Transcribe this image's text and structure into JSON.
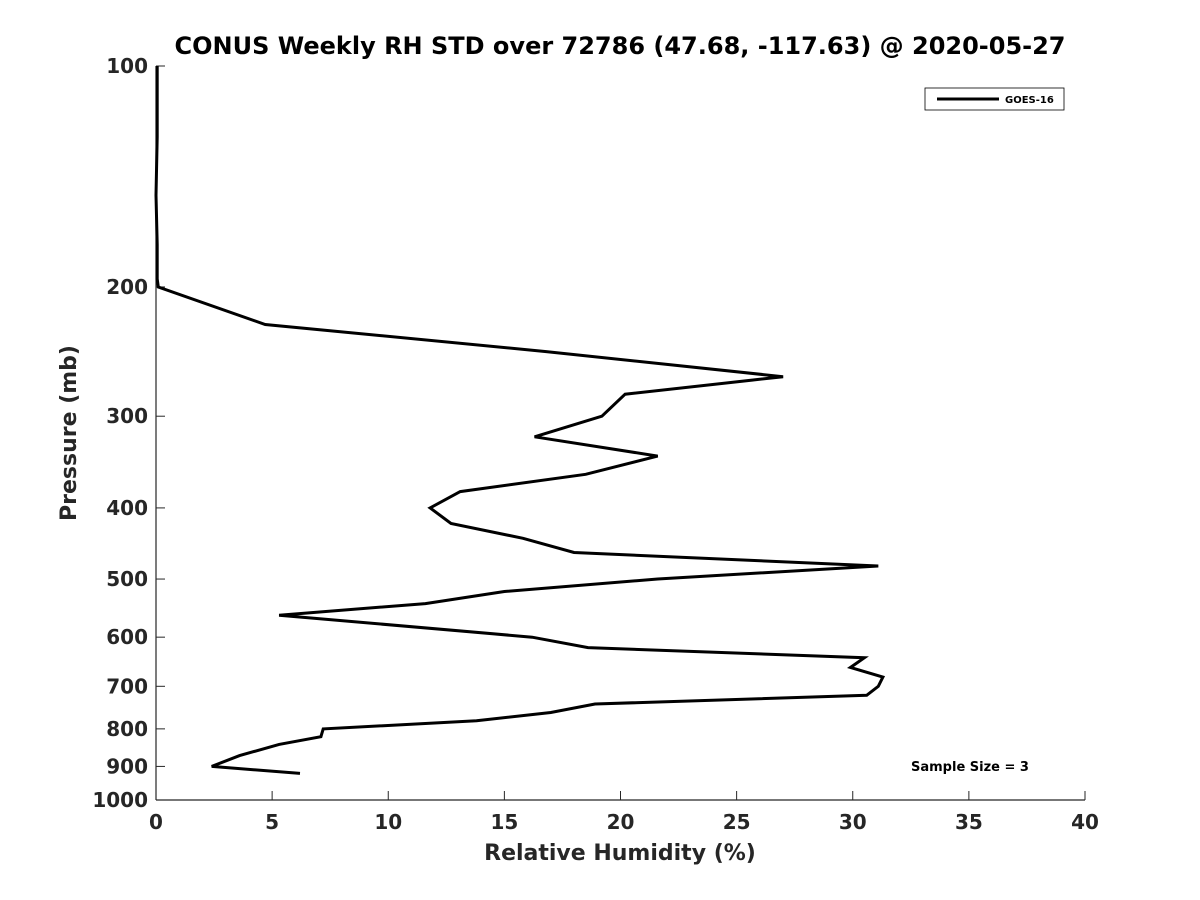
{
  "chart_data": {
    "type": "line",
    "title": "CONUS Weekly RH STD over 72786 (47.68, -117.63) @ 2020-05-27",
    "xlabel": "Relative Humidity (%)",
    "ylabel": "Pressure (mb)",
    "xlim": [
      0,
      40
    ],
    "ylim": [
      100,
      1000
    ],
    "yscale": "log",
    "y_reversed": true,
    "xticks": [
      0,
      5,
      10,
      15,
      20,
      25,
      30,
      35,
      40
    ],
    "yticks": [
      100,
      200,
      300,
      400,
      500,
      600,
      700,
      800,
      900,
      1000
    ],
    "legend_position": "top-right",
    "series": [
      {
        "name": "GOES-16",
        "color": "#000000",
        "points": [
          [
            0.05,
            100
          ],
          [
            0.05,
            125
          ],
          [
            0.0,
            150
          ],
          [
            0.05,
            175
          ],
          [
            0.05,
            195
          ],
          [
            0.1,
            200
          ],
          [
            4.7,
            225
          ],
          [
            16.8,
            245
          ],
          [
            27.0,
            265
          ],
          [
            20.2,
            280
          ],
          [
            19.2,
            300
          ],
          [
            16.3,
            320
          ],
          [
            21.6,
            340
          ],
          [
            18.5,
            360
          ],
          [
            13.1,
            380
          ],
          [
            11.8,
            400
          ],
          [
            12.7,
            420
          ],
          [
            15.8,
            440
          ],
          [
            18.0,
            460
          ],
          [
            31.1,
            480
          ],
          [
            21.6,
            500
          ],
          [
            15.0,
            520
          ],
          [
            11.6,
            540
          ],
          [
            5.3,
            560
          ],
          [
            16.2,
            600
          ],
          [
            18.6,
            620
          ],
          [
            30.5,
            640
          ],
          [
            29.9,
            660
          ],
          [
            31.3,
            680
          ],
          [
            31.1,
            700
          ],
          [
            30.6,
            720
          ],
          [
            18.9,
            740
          ],
          [
            17.0,
            760
          ],
          [
            13.8,
            780
          ],
          [
            7.2,
            800
          ],
          [
            7.1,
            820
          ],
          [
            5.3,
            840
          ],
          [
            3.6,
            870
          ],
          [
            2.4,
            900
          ],
          [
            6.2,
            920
          ]
        ]
      }
    ],
    "annotation": "Sample Size = 3"
  }
}
